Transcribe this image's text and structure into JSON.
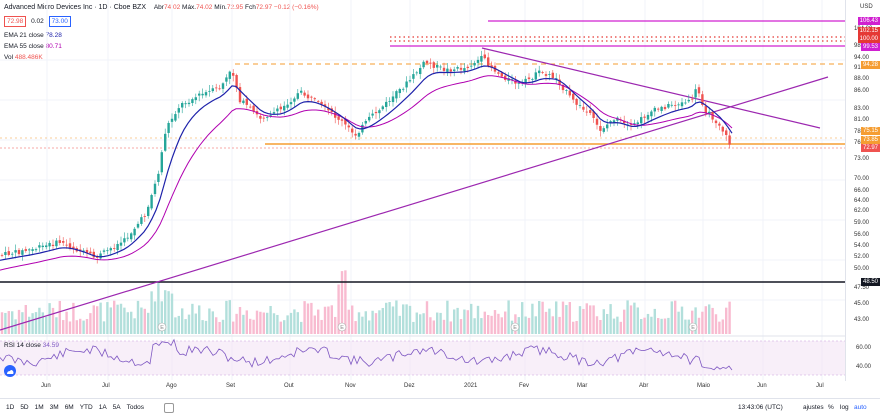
{
  "title": "Advanced Micro Devices Inc · 1D · Cboe BZX",
  "ohlc": {
    "open_label": "Abr",
    "open": "74.02",
    "high_label": "Máx.",
    "high": "74.02",
    "low_label": "Mín.",
    "low": "72.95",
    "close_label": "Fch",
    "close": "72.97",
    "change": "−0.12 (−0.16%)"
  },
  "bid": "72.98",
  "spread": "0.02",
  "ask": "73.00",
  "indicators": [
    {
      "label": "EMA 21 close",
      "value": "78.28",
      "color": "#1e22aa"
    },
    {
      "label": "EMA 55 close",
      "value": "80.71",
      "color": "#b000b0"
    },
    {
      "label": "Vol",
      "value": "488.486K",
      "color": "#26a69a"
    }
  ],
  "currency": "USD",
  "price_ticks": [
    "104.00",
    "98.00",
    "94.00",
    "91.00",
    "88.00",
    "86.00",
    "83.00",
    "81.00",
    "78.00",
    "76.00",
    "73.00",
    "70.00",
    "66.00",
    "64.00",
    "62.00",
    "59.00",
    "56.00",
    "54.00",
    "52.00",
    "50.00",
    "47.50",
    "45.00",
    "43.00"
  ],
  "price_tags": [
    {
      "text": "106.43",
      "color": "#d020d0"
    },
    {
      "text": "102.15",
      "color": "#e53935"
    },
    {
      "text": "100.00",
      "color": "#e53935"
    },
    {
      "text": "99.53",
      "color": "#d020d0"
    },
    {
      "text": "94.28",
      "color": "#f59d32"
    },
    {
      "text": "75.15",
      "color": "#f59d32"
    },
    {
      "text": "73.85",
      "color": "#f59d32"
    },
    {
      "text": "72.97",
      "color": "#ef5350"
    },
    {
      "text": "48.50",
      "color": "#131722"
    }
  ],
  "rsi": {
    "label": "RSI 14 close",
    "value": "34.59",
    "ticks": [
      "60.00",
      "40.00"
    ]
  },
  "months": [
    "Jun",
    "Jul",
    "Ago",
    "Set",
    "Out",
    "Nov",
    "Dez",
    "2021",
    "Fev",
    "Mar",
    "Abr",
    "Maio",
    "Jun",
    "Jul"
  ],
  "timeframes": [
    "1D",
    "5D",
    "1M",
    "3M",
    "6M",
    "YTD",
    "1A",
    "5A",
    "Todos"
  ],
  "clock": "13:43:06 (UTC)",
  "controls": {
    "adjust": "ajustes",
    "percent": "%",
    "log": "log",
    "auto": "auto"
  },
  "earnings_marker": "E"
}
